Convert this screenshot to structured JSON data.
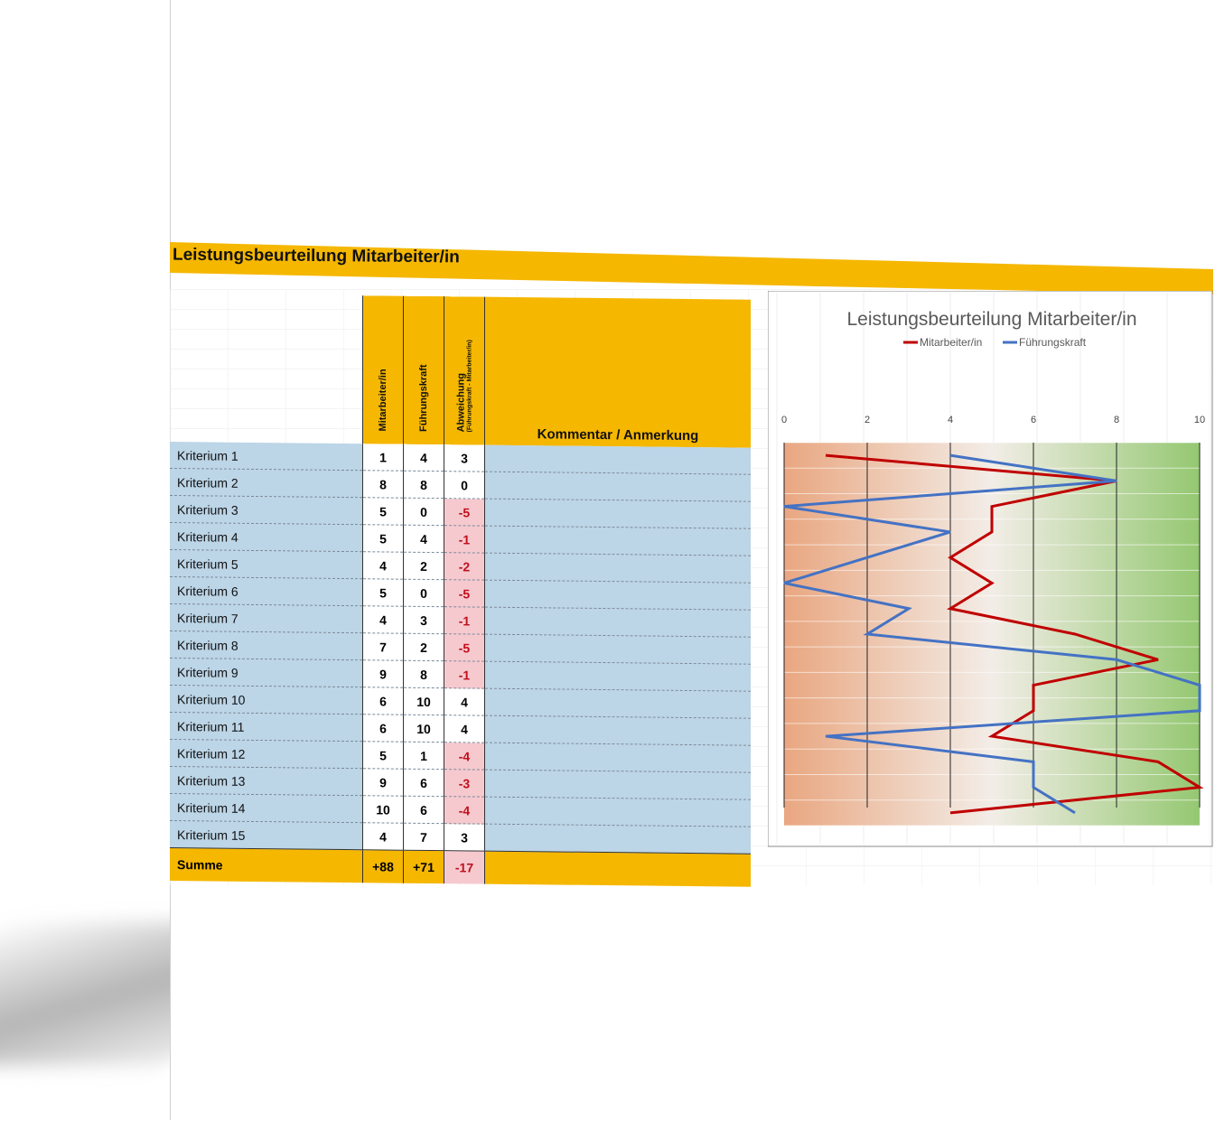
{
  "title": "Leistungsbeurteilung Mitarbeiter/in",
  "table": {
    "headers": {
      "col1": "Mitarbeiter/in",
      "col2": "Führungskraft",
      "col3": "Abweichung",
      "col3_sub": "(Führungskraft - Mitarbeiter/in)",
      "comment": "Kommentar / Anmerkung"
    },
    "rows": [
      {
        "name": "Kriterium 1",
        "ma": "1",
        "fk": "4",
        "dev": "3"
      },
      {
        "name": "Kriterium 2",
        "ma": "8",
        "fk": "8",
        "dev": "0"
      },
      {
        "name": "Kriterium 3",
        "ma": "5",
        "fk": "0",
        "dev": "-5"
      },
      {
        "name": "Kriterium 4",
        "ma": "5",
        "fk": "4",
        "dev": "-1"
      },
      {
        "name": "Kriterium 5",
        "ma": "4",
        "fk": "2",
        "dev": "-2"
      },
      {
        "name": "Kriterium 6",
        "ma": "5",
        "fk": "0",
        "dev": "-5"
      },
      {
        "name": "Kriterium 7",
        "ma": "4",
        "fk": "3",
        "dev": "-1"
      },
      {
        "name": "Kriterium 8",
        "ma": "7",
        "fk": "2",
        "dev": "-5"
      },
      {
        "name": "Kriterium 9",
        "ma": "9",
        "fk": "8",
        "dev": "-1"
      },
      {
        "name": "Kriterium 10",
        "ma": "6",
        "fk": "10",
        "dev": "4"
      },
      {
        "name": "Kriterium 11",
        "ma": "6",
        "fk": "10",
        "dev": "4"
      },
      {
        "name": "Kriterium 12",
        "ma": "5",
        "fk": "1",
        "dev": "-4"
      },
      {
        "name": "Kriterium 13",
        "ma": "9",
        "fk": "6",
        "dev": "-3"
      },
      {
        "name": "Kriterium 14",
        "ma": "10",
        "fk": "6",
        "dev": "-4"
      },
      {
        "name": "Kriterium 15",
        "ma": "4",
        "fk": "7",
        "dev": "3"
      }
    ],
    "sum": {
      "name": "Summe",
      "ma": "+88",
      "fk": "+71",
      "dev": "-17"
    }
  },
  "chart_data": {
    "type": "line",
    "orientation": "horizontal-values",
    "title": "Leistungsbeurteilung Mitarbeiter/in",
    "legend_position": "top",
    "categories": [
      "Kriterium 1",
      "Kriterium 2",
      "Kriterium 3",
      "Kriterium 4",
      "Kriterium 5",
      "Kriterium 6",
      "Kriterium 7",
      "Kriterium 8",
      "Kriterium 9",
      "Kriterium 10",
      "Kriterium 11",
      "Kriterium 12",
      "Kriterium 13",
      "Kriterium 14",
      "Kriterium 15"
    ],
    "xlim": [
      0,
      10
    ],
    "xticks": [
      "0",
      "2",
      "4",
      "6",
      "8",
      "10"
    ],
    "grid": true,
    "series": [
      {
        "name": "Mitarbeiter/in",
        "color": "#c00000",
        "values": [
          1,
          8,
          5,
          5,
          4,
          5,
          4,
          7,
          9,
          6,
          6,
          5,
          9,
          10,
          4
        ]
      },
      {
        "name": "Führungskraft",
        "color": "#4472c4",
        "values": [
          4,
          8,
          0,
          4,
          2,
          0,
          3,
          2,
          8,
          10,
          10,
          1,
          6,
          6,
          7
        ]
      }
    ],
    "background_gradient": [
      "#e8a27a",
      "#f2e6dc",
      "#8fc56a"
    ]
  }
}
